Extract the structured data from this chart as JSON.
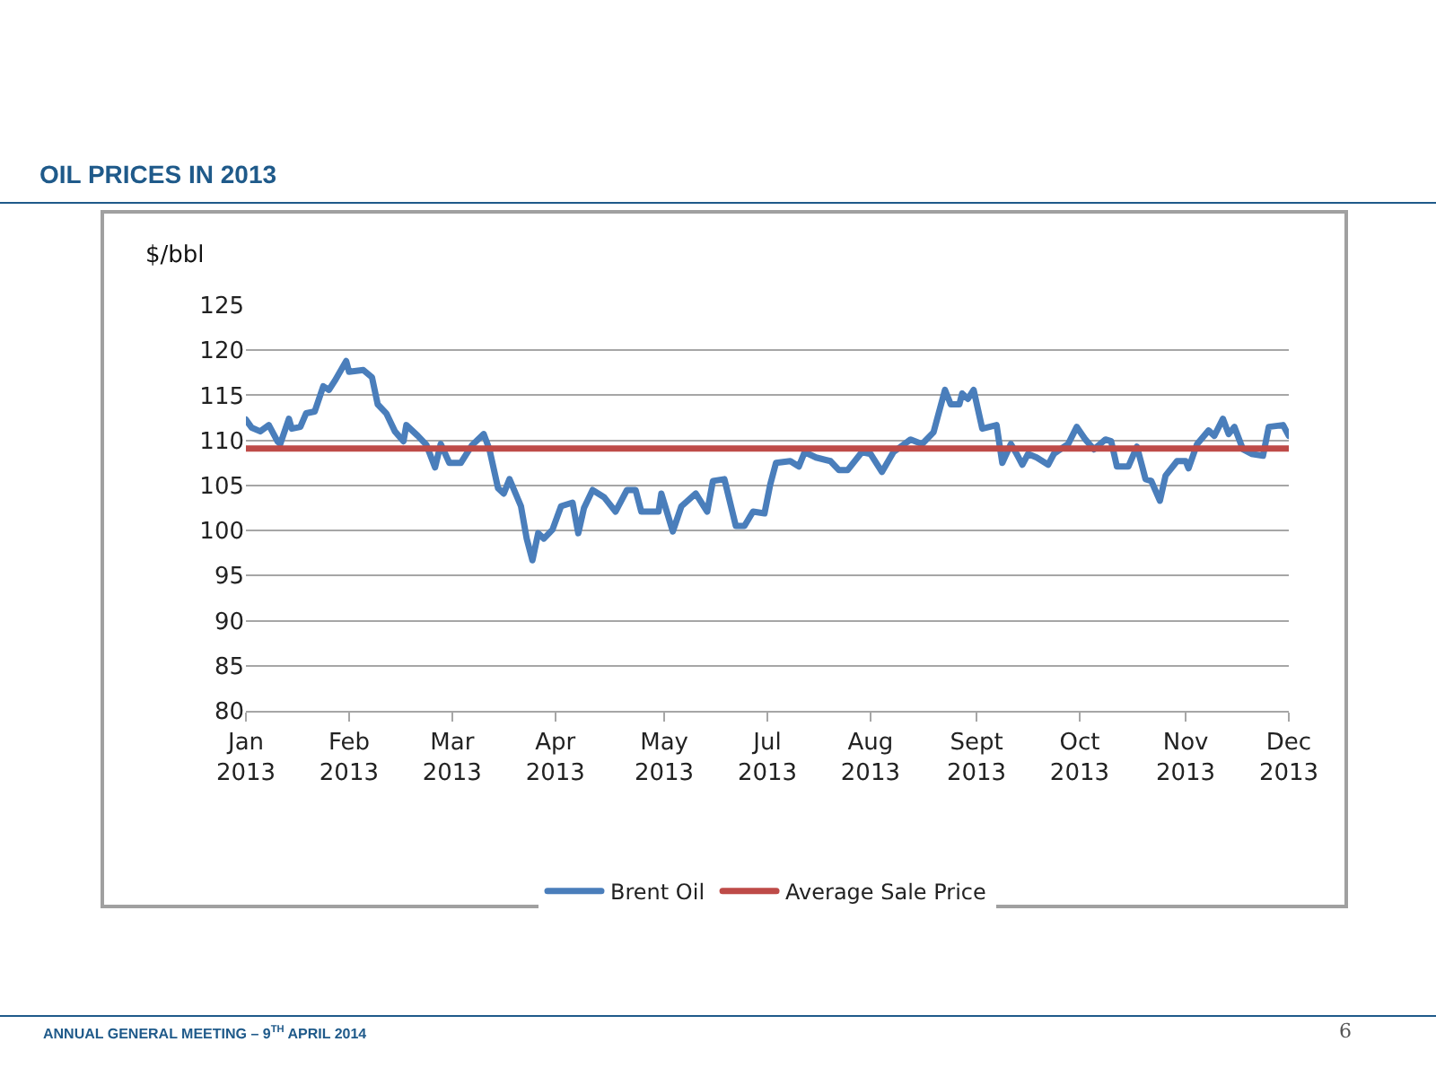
{
  "chart_data": {
    "type": "line",
    "title": "OIL PRICES IN 2013",
    "ylabel": "$/bbl",
    "annotations": [
      "ANNUAL GENERAL MEETING – 9$^{TH}$ APRIL 2014",
      "6"
    ],
    "xlim": [
      "2013-01-01",
      "2013-12-31"
    ],
    "xticks": [
      {
        "value": "2013-01-01",
        "label": "Jan\n2013"
      },
      {
        "value": "2013-02-06",
        "label": "Feb\n2013"
      },
      {
        "value": "2013-03-14",
        "label": "Mar\n2013"
      },
      {
        "value": "2013-04-19",
        "label": "Apr\n2013"
      },
      {
        "value": "2013-05-27",
        "label": "May\n2013"
      },
      {
        "value": "2013-07-02",
        "label": "Jul\n2013"
      },
      {
        "value": "2013-08-07",
        "label": "Aug\n2013"
      },
      {
        "value": "2013-09-13",
        "label": "Sept\n2013"
      },
      {
        "value": "2013-10-19",
        "label": "Oct\n2013"
      },
      {
        "value": "2013-11-25",
        "label": "Nov\n2013"
      },
      {
        "value": "2013-12-31",
        "label": "Dec\n2013"
      }
    ],
    "ylim": [
      80,
      125
    ],
    "yticks": [
      80,
      85,
      90,
      95,
      100,
      105,
      110,
      115,
      120,
      125
    ],
    "grid": "y",
    "legend": "bottom",
    "marker": "none",
    "line_style": "solid",
    "series": [
      {
        "name": "Brent Oil",
        "color": "#4a7ebb",
        "x": [
          "2013-01-01",
          "2013-01-03",
          "2013-01-06",
          "2013-01-09",
          "2013-01-12",
          "2013-01-13",
          "2013-01-16",
          "2013-01-17",
          "2013-01-20",
          "2013-01-22",
          "2013-01-25",
          "2013-01-28",
          "2013-01-30",
          "2013-02-01",
          "2013-02-05",
          "2013-02-06",
          "2013-02-11",
          "2013-02-14",
          "2013-02-16",
          "2013-02-19",
          "2013-02-22",
          "2013-02-25",
          "2013-02-26",
          "2013-03-02",
          "2013-03-05",
          "2013-03-08",
          "2013-03-10",
          "2013-03-13",
          "2013-03-17",
          "2013-03-21",
          "2013-03-25",
          "2013-03-27",
          "2013-03-30",
          "2013-04-01",
          "2013-04-03",
          "2013-04-07",
          "2013-04-09",
          "2013-04-11",
          "2013-04-13",
          "2013-04-15",
          "2013-04-18",
          "2013-04-21",
          "2013-04-25",
          "2013-04-27",
          "2013-04-29",
          "2013-05-02",
          "2013-05-06",
          "2013-05-10",
          "2013-05-14",
          "2013-05-17",
          "2013-05-19",
          "2013-05-25",
          "2013-05-26",
          "2013-05-30",
          "2013-06-02",
          "2013-06-07",
          "2013-06-11",
          "2013-06-13",
          "2013-06-17",
          "2013-06-21",
          "2013-06-24",
          "2013-06-27",
          "2013-07-01",
          "2013-07-03",
          "2013-07-05",
          "2013-07-10",
          "2013-07-13",
          "2013-07-15",
          "2013-07-19",
          "2013-07-24",
          "2013-07-27",
          "2013-07-30",
          "2013-08-04",
          "2013-08-07",
          "2013-08-11",
          "2013-08-15",
          "2013-08-21",
          "2013-08-25",
          "2013-08-29",
          "2013-09-02",
          "2013-09-04",
          "2013-09-07",
          "2013-09-08",
          "2013-09-10",
          "2013-09-12",
          "2013-09-15",
          "2013-09-20",
          "2013-09-22",
          "2013-09-25",
          "2013-09-27",
          "2013-09-29",
          "2013-10-01",
          "2013-10-04",
          "2013-10-08",
          "2013-10-10",
          "2013-10-15",
          "2013-10-18",
          "2013-10-21",
          "2013-10-24",
          "2013-10-28",
          "2013-10-30",
          "2013-11-01",
          "2013-11-05",
          "2013-11-08",
          "2013-11-11",
          "2013-11-13",
          "2013-11-16",
          "2013-11-18",
          "2013-11-22",
          "2013-11-25",
          "2013-11-26",
          "2013-11-29",
          "2013-12-03",
          "2013-12-05",
          "2013-12-08",
          "2013-12-10",
          "2013-12-12",
          "2013-12-15",
          "2013-12-18",
          "2013-12-22",
          "2013-12-24",
          "2013-12-29",
          "2013-12-31"
        ],
        "values": [
          112.3,
          111.4,
          111,
          111.7,
          109.9,
          109.6,
          112.4,
          111.3,
          111.5,
          113,
          113.2,
          116,
          115.6,
          116.6,
          118.8,
          117.6,
          117.8,
          117,
          114,
          113,
          111,
          109.9,
          111.7,
          110.5,
          109.5,
          107,
          109.6,
          107.5,
          107.5,
          109.5,
          110.7,
          109,
          104.7,
          104.1,
          105.7,
          102.7,
          99.1,
          96.7,
          99.7,
          99.1,
          100.1,
          102.7,
          103.1,
          99.7,
          102.5,
          104.5,
          103.7,
          102.1,
          104.5,
          104.5,
          102.1,
          102.1,
          104.1,
          99.9,
          102.7,
          104.1,
          102.1,
          105.5,
          105.7,
          100.5,
          100.5,
          102.1,
          101.9,
          105.1,
          107.5,
          107.7,
          107.1,
          108.7,
          108.1,
          107.7,
          106.7,
          106.7,
          108.7,
          108.5,
          106.5,
          108.7,
          110.1,
          109.6,
          110.9,
          115.6,
          114,
          114,
          115.2,
          114.6,
          115.6,
          111.3,
          111.7,
          107.5,
          109.6,
          108.5,
          107.3,
          108.5,
          108.1,
          107.3,
          108.5,
          109.6,
          111.5,
          110.1,
          109,
          110.1,
          109.9,
          107.1,
          107.1,
          109.3,
          105.7,
          105.5,
          103.3,
          106.1,
          107.7,
          107.7,
          106.9,
          109.6,
          111.1,
          110.5,
          112.4,
          110.7,
          111.5,
          109,
          108.5,
          108.3,
          111.5,
          111.7,
          110.5
        ]
      },
      {
        "name": "Average Sale Price",
        "color": "#be4b48",
        "x": [
          "2013-01-01",
          "2013-12-31"
        ],
        "values": [
          109.1,
          109.1
        ]
      }
    ]
  }
}
